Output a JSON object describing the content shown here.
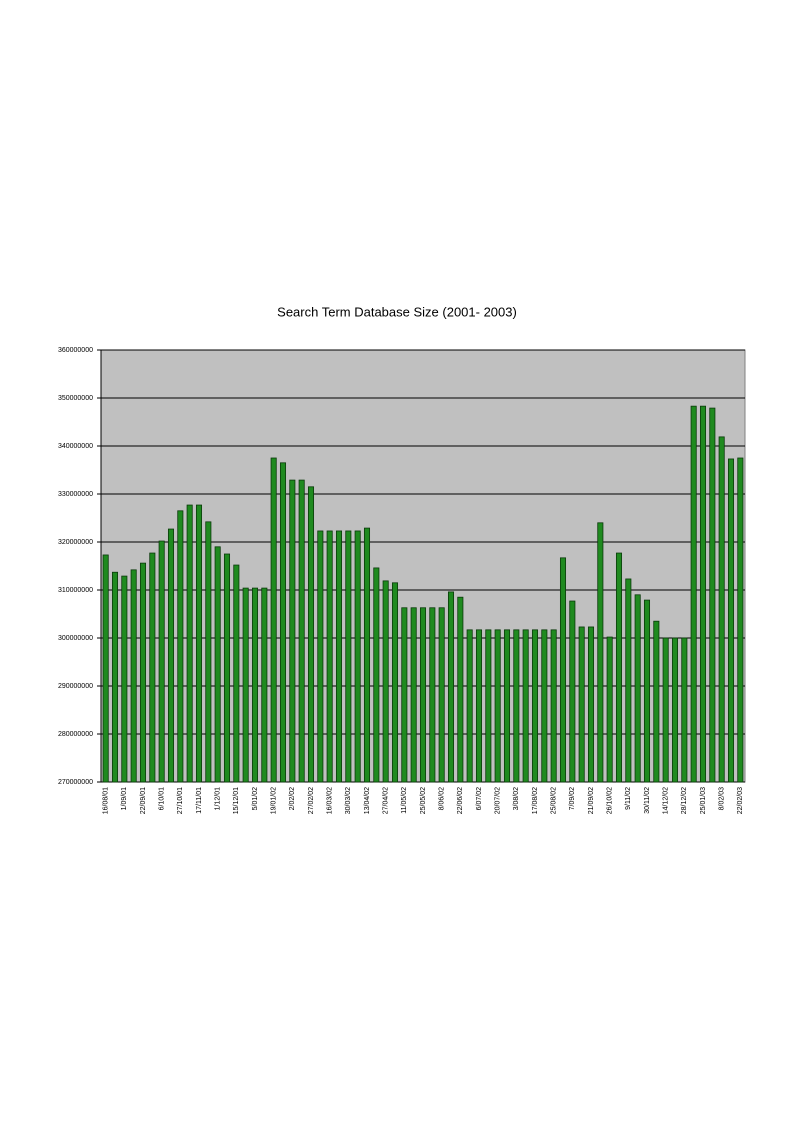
{
  "chart_data": {
    "type": "bar",
    "title": "Search Term Database Size (2001- 2003)",
    "categories": [
      "16/08/01",
      null,
      "1/09/01",
      null,
      "22/09/01",
      null,
      "6/10/01",
      null,
      "27/10/01",
      null,
      "17/11/01",
      null,
      "1/12/01",
      null,
      "15/12/01",
      null,
      "5/01/02",
      null,
      "19/01/02",
      null,
      "2/02/02",
      null,
      "27/02/02",
      null,
      "16/03/02",
      null,
      "30/03/02",
      null,
      "13/04/02",
      null,
      "27/04/02",
      null,
      "11/05/02",
      null,
      "25/05/02",
      null,
      "8/06/02",
      null,
      "22/06/02",
      null,
      "6/07/02",
      null,
      "20/07/02",
      null,
      "3/08/02",
      null,
      "17/08/02",
      null,
      "25/08/02",
      null,
      "7/09/02",
      null,
      "21/09/02",
      null,
      "26/10/02",
      null,
      "9/11/02",
      null,
      "30/11/02",
      null,
      "14/12/02",
      null,
      "28/12/02",
      null,
      "25/01/03",
      null,
      "8/02/03",
      null,
      "22/02/03"
    ],
    "values": [
      317300000,
      313700000,
      312900000,
      314200000,
      315600000,
      317700000,
      320200000,
      322700000,
      326500000,
      327700000,
      327700000,
      324200000,
      319000000,
      317500000,
      315200000,
      310400000,
      310400000,
      310400000,
      337500000,
      336500000,
      332900000,
      332900000,
      331500000,
      322300000,
      322300000,
      322300000,
      322300000,
      322300000,
      322900000,
      314600000,
      311900000,
      311500000,
      306300000,
      306300000,
      306300000,
      306300000,
      306300000,
      309600000,
      308500000,
      301700000,
      301700000,
      301700000,
      301700000,
      301700000,
      301700000,
      301700000,
      301700000,
      301700000,
      301700000,
      316700000,
      307700000,
      302300000,
      302300000,
      324000000,
      300200000,
      317700000,
      312300000,
      309000000,
      307900000,
      303500000,
      300000000,
      300000000,
      300000000,
      348300000,
      348300000,
      347900000,
      341900000,
      337300000,
      337500000
    ],
    "color": "#1f8a1f",
    "ylim": [
      270000000,
      360000000
    ],
    "yticks": [
      270000000,
      280000000,
      290000000,
      300000000,
      310000000,
      320000000,
      330000000,
      340000000,
      350000000,
      360000000
    ],
    "grid": true
  }
}
